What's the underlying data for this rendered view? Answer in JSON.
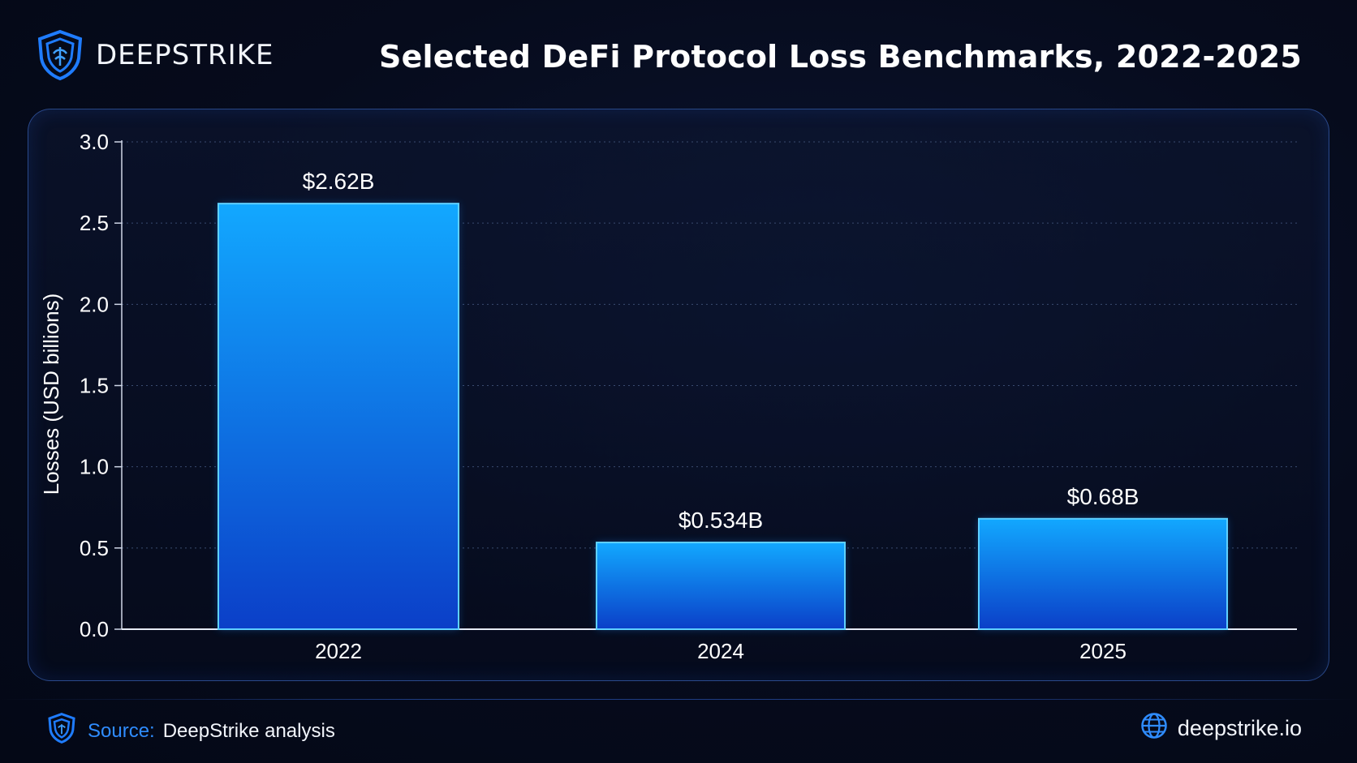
{
  "brand": {
    "name": "DEEPSTRIKE",
    "logo_icon": "shield-icon"
  },
  "colors": {
    "background": "#050a1a",
    "accent": "#2f8cff",
    "bar_top": "#12a8ff",
    "bar_bottom": "#0b3fc8"
  },
  "chart_data": {
    "type": "bar",
    "title": "Selected DeFi Protocol Loss Benchmarks, 2022-2025",
    "categories": [
      "2022",
      "2024",
      "2025"
    ],
    "values": [
      2.62,
      0.534,
      0.68
    ],
    "data_labels": [
      "$2.62B",
      "$0.534B",
      "$0.68B"
    ],
    "xlabel": "",
    "ylabel": "Losses (USD billions)",
    "ylim": [
      0,
      3.0
    ],
    "yticks": [
      "0.0",
      "0.5",
      "1.0",
      "1.5",
      "2.0",
      "2.5",
      "3.0"
    ],
    "grid": "horizontal dotted",
    "legend": "none"
  },
  "footer": {
    "source_label": "Source:",
    "source_text": "DeepStrike analysis",
    "source_icon": "shield-icon",
    "site_icon": "globe-icon",
    "site": "deepstrike.io"
  }
}
